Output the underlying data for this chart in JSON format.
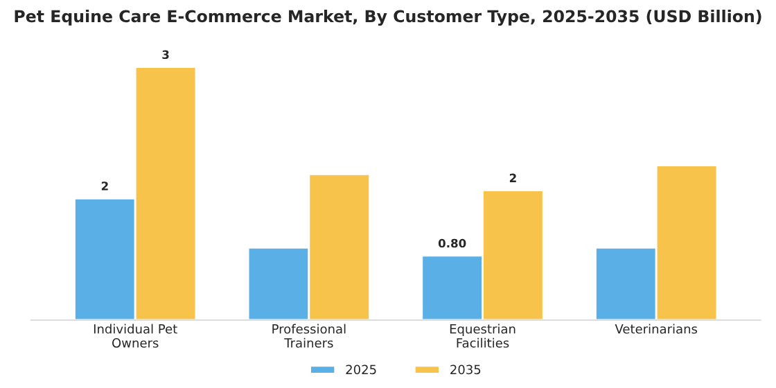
{
  "chart_data": {
    "type": "bar",
    "title": "Pet Equine Care E-Commerce Market, By Customer Type, 2025-2035 (USD Billion)",
    "categories": [
      "Individual Pet\nOwners",
      "Professional\nTrainers",
      "Equestrian\nFacilities",
      "Veterinarians"
    ],
    "series": [
      {
        "name": "2025",
        "color": "#5ab0e6",
        "values": [
          1.51,
          0.9,
          0.8,
          0.9
        ],
        "value_labels": [
          "2",
          null,
          "0.80",
          null
        ]
      },
      {
        "name": "2035",
        "color": "#f7c34b",
        "values": [
          3.14,
          1.81,
          1.61,
          1.92
        ],
        "value_labels": [
          "3",
          null,
          "2",
          null
        ]
      }
    ],
    "tick_labels": "x",
    "grid": false,
    "legend": "bottom"
  }
}
